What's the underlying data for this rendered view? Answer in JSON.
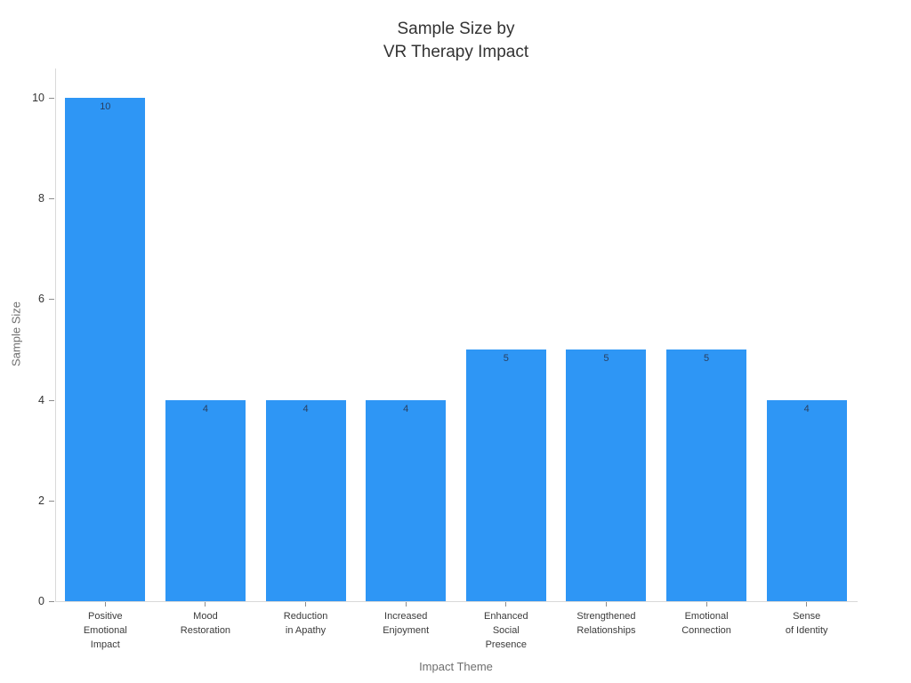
{
  "chart_data": {
    "type": "bar",
    "title": "Sample Size by\nVR Therapy Impact",
    "xlabel": "Impact Theme",
    "ylabel": "Sample Size",
    "categories": [
      "Positive\nEmotional\nImpact",
      "Mood\nRestoration",
      "Reduction\nin Apathy",
      "Increased\nEnjoyment",
      "Enhanced\nSocial\nPresence",
      "Strengthened\nRelationships",
      "Emotional\nConnection",
      "Sense\nof Identity"
    ],
    "values": [
      10,
      4,
      4,
      4,
      5,
      5,
      5,
      4
    ],
    "bar_labels": [
      "10",
      "4",
      "4",
      "4",
      "5",
      "5",
      "5",
      "4"
    ],
    "ylim": [
      0,
      10
    ],
    "yticks": [
      0,
      2,
      4,
      6,
      8,
      10
    ],
    "grid": false,
    "legend_position": "none",
    "bar_color": "#2e96f5",
    "bar_label_color": "#2a3f5f",
    "axis_line_color": "#d9d9d9",
    "tick_mark_color": "#8c8c8c",
    "tick_label_color": "#333333",
    "axis_title_color": "#6e6e6e",
    "background_color": "#ffffff"
  }
}
